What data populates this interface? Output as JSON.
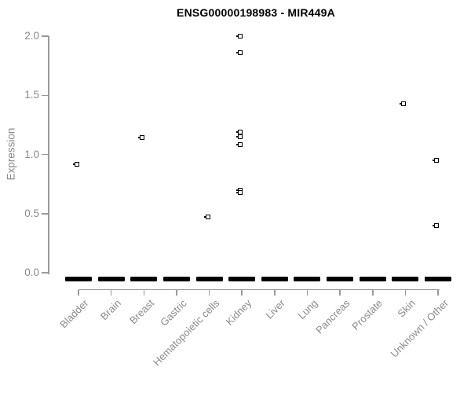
{
  "chart_data": {
    "type": "scatter",
    "title": "ENSG00000198983 - MIR449A",
    "xlabel": "",
    "ylabel": "Expression",
    "ylim": [
      0.0,
      2.0
    ],
    "yticks": [
      0.0,
      0.5,
      1.0,
      1.5,
      2.0
    ],
    "ytick_labels": [
      "0.0",
      "0.5",
      "1.0",
      "1.5",
      "2.0"
    ],
    "categories": [
      "Bladder",
      "Brain",
      "Breast",
      "Gastric",
      "Hematopoietic cells",
      "Kidney",
      "Liver",
      "Lung",
      "Pancreas",
      "Prostate",
      "Skin",
      "Unknown / Other"
    ],
    "points": [
      {
        "category": "Bladder",
        "value": 0.92
      },
      {
        "category": "Breast",
        "value": 1.14
      },
      {
        "category": "Hematopoietic cells",
        "value": 0.47
      },
      {
        "category": "Kidney",
        "value": 2.0
      },
      {
        "category": "Kidney",
        "value": 1.86
      },
      {
        "category": "Kidney",
        "value": 1.19
      },
      {
        "category": "Kidney",
        "value": 1.15
      },
      {
        "category": "Kidney",
        "value": 1.08
      },
      {
        "category": "Kidney",
        "value": 0.7
      },
      {
        "category": "Kidney",
        "value": 0.68
      },
      {
        "category": "Skin",
        "value": 1.43
      },
      {
        "category": "Unknown / Other",
        "value": 0.95
      },
      {
        "category": "Unknown / Other",
        "value": 0.4
      }
    ],
    "zero_clusters": {
      "description": "every category has many overlapping points at 0.0 forming a thick horizontal bar",
      "value": 0.0,
      "categories_with_bar": [
        "Bladder",
        "Brain",
        "Breast",
        "Gastric",
        "Hematopoietic cells",
        "Kidney",
        "Liver",
        "Lung",
        "Pancreas",
        "Prostate",
        "Skin",
        "Unknown / Other"
      ]
    },
    "marker": "open-square",
    "legend": "none",
    "grid": "off",
    "colors": {
      "marker": "#000000",
      "axis": "#999999",
      "tick_label": "#8a8a8a",
      "title": "#000000",
      "background": "#ffffff"
    }
  }
}
